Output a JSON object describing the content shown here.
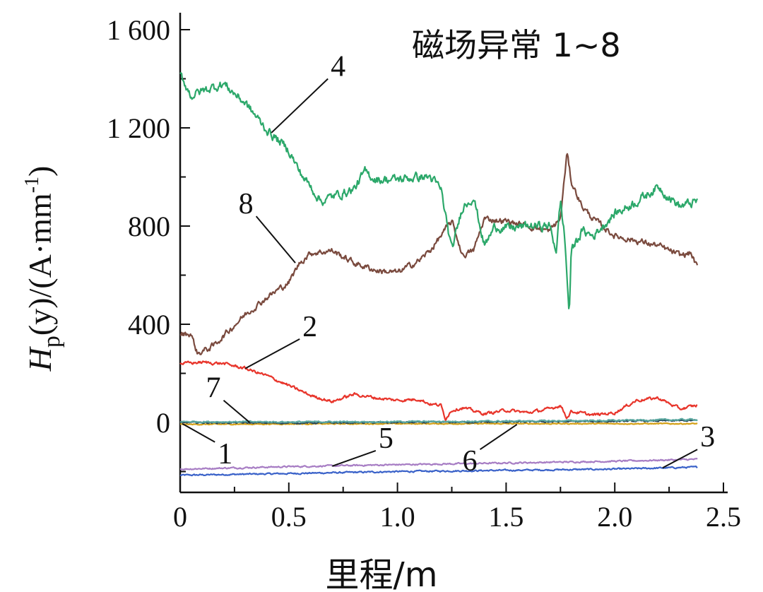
{
  "chart_data": {
    "type": "line",
    "title": "磁场异常 1~8",
    "xlabel": "里程/m",
    "ylabel": {
      "H": "H",
      "p": "p",
      "y_expr": "(y)/(A·mm",
      "sup": "-1",
      "close": ")"
    },
    "xlim": [
      0,
      2.5
    ],
    "ylim": [
      -300,
      1600
    ],
    "x_ticks": [
      {
        "value": 0,
        "label": "0"
      },
      {
        "value": 0.5,
        "label": "0.5"
      },
      {
        "value": 1.0,
        "label": "1.0"
      },
      {
        "value": 1.5,
        "label": "1.5"
      },
      {
        "value": 2.0,
        "label": "2.0"
      },
      {
        "value": 2.5,
        "label": "2.5"
      }
    ],
    "y_ticks": [
      {
        "value": 1600,
        "label": "1 600"
      },
      {
        "value": 1200,
        "label": "1 200"
      },
      {
        "value": 800,
        "label": "800"
      },
      {
        "value": 400,
        "label": "400"
      },
      {
        "value": 0,
        "label": "0"
      }
    ],
    "grid": false,
    "series": [
      {
        "name": "1",
        "color": "#d4a017",
        "noise": 2,
        "x": [
          0,
          0.5,
          1.0,
          1.5,
          2.0,
          2.38
        ],
        "y": [
          -8,
          -6,
          -5,
          -5,
          -5,
          -5
        ]
      },
      {
        "name": "2",
        "color": "#e8352b",
        "noise": 6,
        "x": [
          0,
          0.1,
          0.2,
          0.3,
          0.4,
          0.5,
          0.6,
          0.7,
          0.8,
          0.9,
          1.0,
          1.1,
          1.15,
          1.2,
          1.22,
          1.25,
          1.3,
          1.4,
          1.5,
          1.6,
          1.7,
          1.75,
          1.78,
          1.8,
          1.9,
          2.0,
          2.1,
          2.2,
          2.3,
          2.38
        ],
        "y": [
          240,
          245,
          240,
          220,
          190,
          150,
          110,
          85,
          115,
          100,
          90,
          95,
          75,
          70,
          15,
          50,
          60,
          35,
          50,
          40,
          55,
          70,
          20,
          45,
          30,
          40,
          90,
          100,
          55,
          70
        ]
      },
      {
        "name": "3",
        "color": "#3a62c9",
        "noise": 3,
        "x": [
          0,
          0.5,
          1.0,
          1.5,
          2.0,
          2.38
        ],
        "y": [
          -215,
          -208,
          -200,
          -195,
          -190,
          -182
        ]
      },
      {
        "name": "4",
        "color": "#2ca86a",
        "noise": 18,
        "x": [
          0,
          0.05,
          0.1,
          0.2,
          0.3,
          0.4,
          0.5,
          0.55,
          0.6,
          0.65,
          0.7,
          0.8,
          0.85,
          0.9,
          1.0,
          1.1,
          1.15,
          1.2,
          1.25,
          1.3,
          1.35,
          1.4,
          1.45,
          1.5,
          1.6,
          1.7,
          1.73,
          1.75,
          1.77,
          1.79,
          1.8,
          1.85,
          1.9,
          2.0,
          2.1,
          2.2,
          2.3,
          2.38
        ],
        "y": [
          1420,
          1330,
          1350,
          1380,
          1300,
          1190,
          1110,
          1020,
          960,
          900,
          920,
          950,
          1020,
          990,
          990,
          1000,
          1000,
          950,
          700,
          880,
          920,
          720,
          800,
          790,
          800,
          800,
          700,
          900,
          750,
          440,
          700,
          780,
          760,
          850,
          900,
          960,
          880,
          900
        ]
      },
      {
        "name": "5",
        "color": "#a77dc4",
        "noise": 3,
        "x": [
          0,
          0.5,
          1.0,
          1.5,
          2.0,
          2.38
        ],
        "y": [
          -190,
          -180,
          -172,
          -165,
          -158,
          -150
        ]
      },
      {
        "name": "6",
        "color": "#5ba8a0",
        "noise": 3,
        "x": [
          0,
          0.5,
          1.0,
          1.5,
          2.0,
          2.38
        ],
        "y": [
          3,
          2,
          3,
          5,
          8,
          12
        ]
      },
      {
        "name": "7",
        "color": "#2a4a5a",
        "noise": 3,
        "x": [
          0,
          0.5,
          1.0,
          1.5,
          2.0,
          2.38
        ],
        "y": [
          0,
          -2,
          0,
          2,
          5,
          8
        ]
      },
      {
        "name": "8",
        "color": "#7a4a3e",
        "noise": 12,
        "x": [
          0,
          0.05,
          0.08,
          0.15,
          0.3,
          0.4,
          0.5,
          0.55,
          0.6,
          0.7,
          0.8,
          0.9,
          1.0,
          1.1,
          1.15,
          1.2,
          1.25,
          1.3,
          1.35,
          1.4,
          1.5,
          1.6,
          1.7,
          1.75,
          1.78,
          1.8,
          1.85,
          1.9,
          2.0,
          2.1,
          2.2,
          2.3,
          2.35,
          2.38
        ],
        "y": [
          360,
          360,
          280,
          310,
          440,
          510,
          570,
          650,
          690,
          700,
          650,
          620,
          610,
          660,
          700,
          760,
          820,
          680,
          700,
          830,
          820,
          800,
          780,
          830,
          1100,
          980,
          880,
          830,
          760,
          740,
          720,
          680,
          690,
          630
        ]
      }
    ],
    "series_labels": [
      {
        "name": "1",
        "label_xy": [
          0.16,
          -80
        ],
        "point_xy": [
          0.01,
          -5
        ]
      },
      {
        "name": "2",
        "label_xy": [
          0.55,
          340
        ],
        "point_xy": [
          0.3,
          220
        ]
      },
      {
        "name": "3",
        "label_xy": [
          2.38,
          -110
        ],
        "point_xy": [
          2.22,
          -185
        ]
      },
      {
        "name": "4",
        "label_xy": [
          0.68,
          1400
        ],
        "point_xy": [
          0.42,
          1180
        ]
      },
      {
        "name": "5",
        "label_xy": [
          0.9,
          -115
        ],
        "point_xy": [
          0.7,
          -178
        ]
      },
      {
        "name": "6",
        "label_xy": [
          1.38,
          -110
        ],
        "point_xy": [
          1.55,
          -8
        ]
      },
      {
        "name": "7",
        "label_xy": [
          0.2,
          90
        ],
        "point_xy": [
          0.32,
          0
        ]
      },
      {
        "name": "8",
        "label_xy": [
          0.35,
          840
        ],
        "point_xy": [
          0.53,
          650
        ]
      }
    ]
  }
}
